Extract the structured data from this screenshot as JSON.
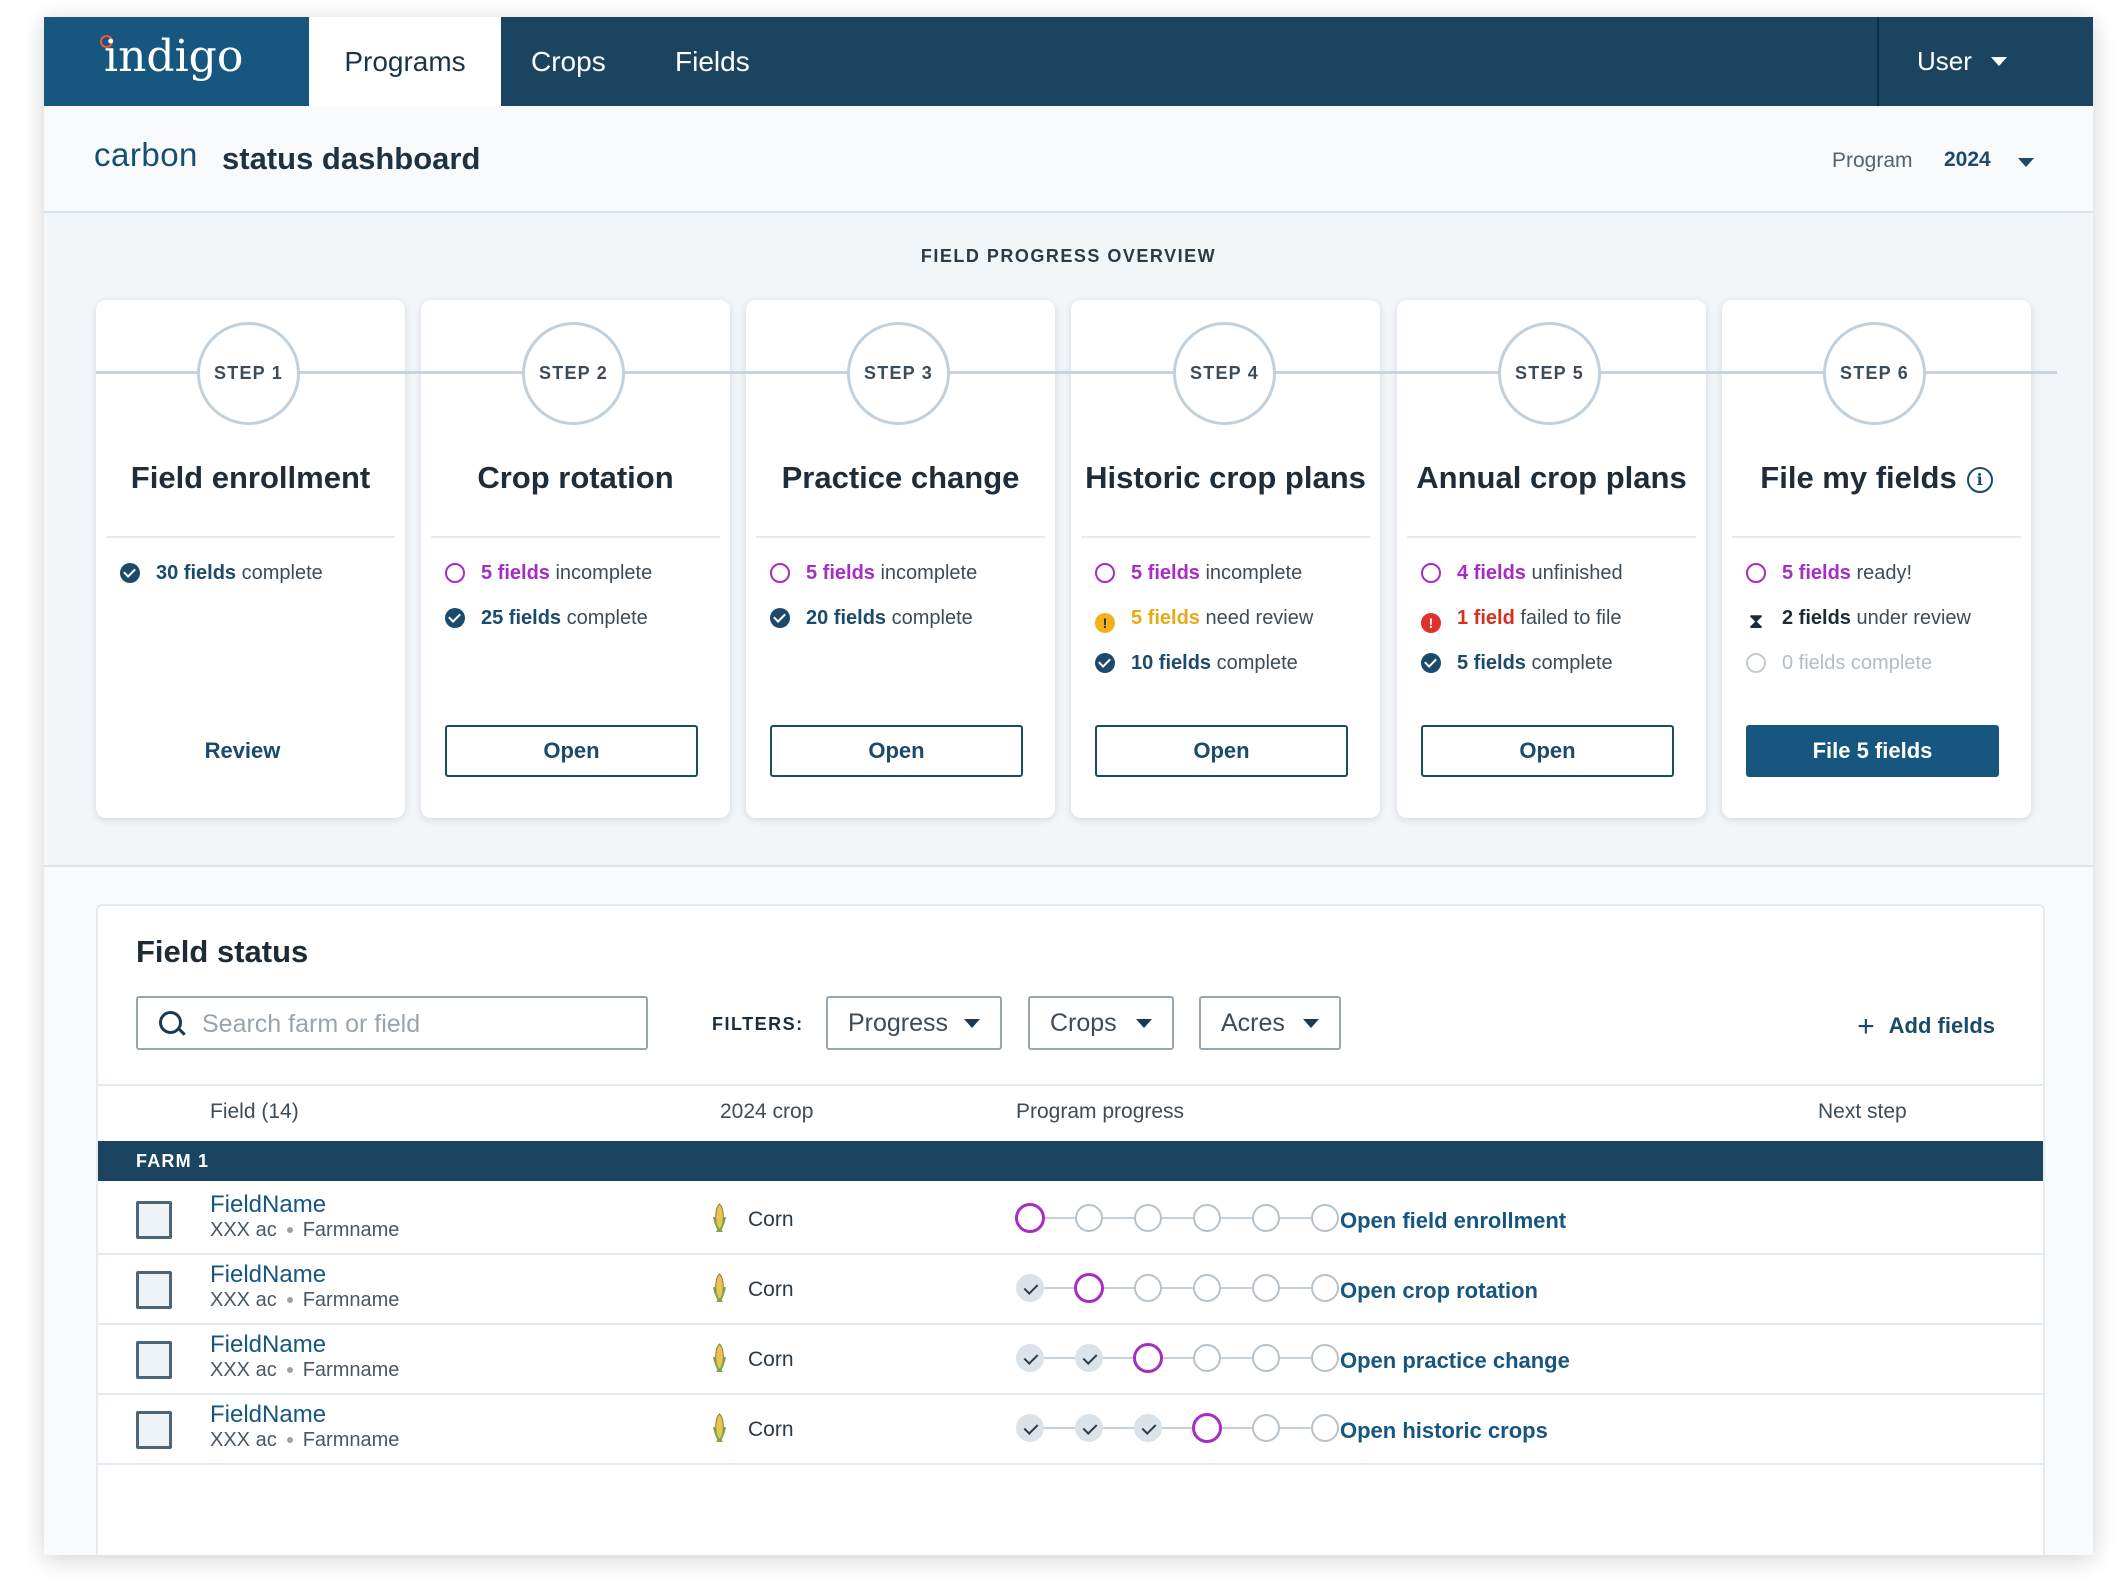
{
  "nav": {
    "logo": "indigo",
    "tabs": [
      {
        "label": "Programs",
        "active": true
      },
      {
        "label": "Crops",
        "active": false
      },
      {
        "label": "Fields",
        "active": false
      }
    ],
    "user_label": "User"
  },
  "header": {
    "brand": "carbon",
    "title": "status dashboard",
    "program_label": "Program",
    "program_value": "2024"
  },
  "overview": {
    "title": "FIELD PROGRESS OVERVIEW",
    "steps": [
      {
        "step": "STEP 1",
        "title": "Field enrollment",
        "stats": [
          {
            "icon": "check-circle-icon",
            "count": "30 fields",
            "text": " complete"
          }
        ],
        "action": "Review"
      },
      {
        "step": "STEP 2",
        "title": "Crop rotation",
        "stats": [
          {
            "icon": "open-circle-icon",
            "count": "5 fields",
            "text": " incomplete"
          },
          {
            "icon": "check-circle-icon",
            "count": "25 fields",
            "text": " complete"
          }
        ],
        "action": "Open"
      },
      {
        "step": "STEP 3",
        "title": "Practice change",
        "stats": [
          {
            "icon": "open-circle-icon",
            "count": "5 fields",
            "text": " incomplete"
          },
          {
            "icon": "check-circle-icon",
            "count": "20 fields",
            "text": " complete"
          }
        ],
        "action": "Open"
      },
      {
        "step": "STEP 4",
        "title": "Historic crop plans",
        "stats": [
          {
            "icon": "open-circle-icon",
            "count": "5 fields",
            "text": " incomplete"
          },
          {
            "icon": "warning-icon",
            "count": "5 fields",
            "text": " need review"
          },
          {
            "icon": "check-circle-icon",
            "count": "10 fields",
            "text": " complete"
          }
        ],
        "action": "Open"
      },
      {
        "step": "STEP 5",
        "title": "Annual crop plans",
        "stats": [
          {
            "icon": "open-circle-icon",
            "count": "4 fields",
            "text": " unfinished"
          },
          {
            "icon": "error-icon",
            "count": "1 field",
            "text": " failed to file"
          },
          {
            "icon": "check-circle-icon",
            "count": "5 fields",
            "text": " complete"
          }
        ],
        "action": "Open"
      },
      {
        "step": "STEP 6",
        "title": "File my fields",
        "stats": [
          {
            "icon": "open-circle-icon",
            "count": "5 fields",
            "text": " ready!"
          },
          {
            "icon": "hourglass-icon",
            "count": "2 fields",
            "text": " under review"
          },
          {
            "icon": "open-circle-grey-icon",
            "count": "0 fields complete",
            "text": ""
          }
        ],
        "action": "File 5 fields"
      }
    ]
  },
  "field_status": {
    "title": "Field status",
    "search_placeholder": "Search farm or field",
    "filters_label": "FILTERS:",
    "filters": [
      "Progress",
      "Crops",
      "Acres"
    ],
    "add_fields": "Add fields",
    "columns": [
      "Field (14)",
      "2024 crop",
      "Program progress",
      "Next step"
    ],
    "farm_group": "FARM 1",
    "rows": [
      {
        "name": "FieldName",
        "acres": "XXX ac",
        "farm": "Farmname",
        "crop": "Corn",
        "progress_completed_steps": 0,
        "next_step": "Open field enrollment"
      },
      {
        "name": "FieldName",
        "acres": "XXX ac",
        "farm": "Farmname",
        "crop": "Corn",
        "progress_completed_steps": 1,
        "next_step": "Open crop rotation"
      },
      {
        "name": "FieldName",
        "acres": "XXX ac",
        "farm": "Farmname",
        "crop": "Corn",
        "progress_completed_steps": 2,
        "next_step": "Open practice change"
      },
      {
        "name": "FieldName",
        "acres": "XXX ac",
        "farm": "Farmname",
        "crop": "Corn",
        "progress_completed_steps": 3,
        "next_step": "Open historic crops"
      }
    ]
  },
  "colors": {
    "nav": "#1b4460",
    "brand_blue": "#17567f",
    "accent_purple": "#a72cc4",
    "warning": "#f3b21b",
    "error": "#e0322a"
  }
}
